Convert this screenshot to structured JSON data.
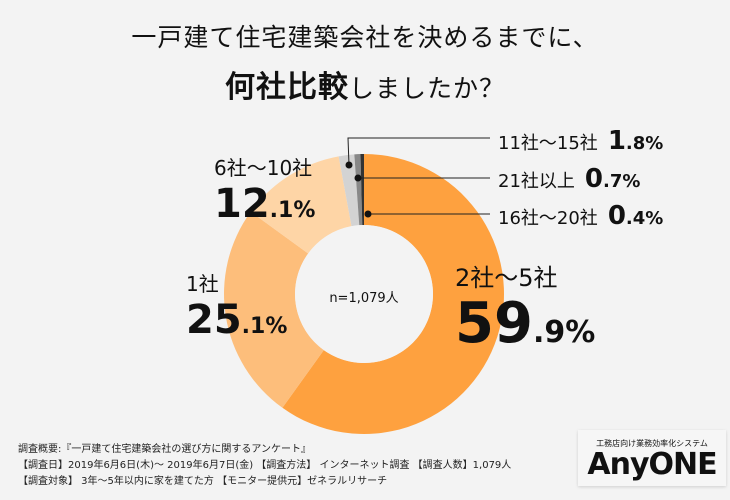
{
  "title_line1": "一戸建て住宅建築会社を決めるまでに、",
  "title_line2_bold": "何社比較",
  "title_line2_rest": "しましたか？",
  "chart_data": {
    "type": "pie",
    "donut": true,
    "center_label": "n=1,079人",
    "categories": [
      "2社〜5社",
      "1社",
      "6社〜10社",
      "11社〜15社",
      "21社以上",
      "16社〜20社"
    ],
    "values": [
      59.9,
      25.1,
      12.1,
      1.8,
      0.7,
      0.4
    ],
    "value_labels": [
      {
        "int": "59",
        "dec": ".9%"
      },
      {
        "int": "25",
        "dec": ".1%"
      },
      {
        "int": "12",
        "dec": ".1%"
      },
      {
        "int": "1",
        "dec": ".8%"
      },
      {
        "int": "0",
        "dec": ".7%"
      },
      {
        "int": "0",
        "dec": ".4%"
      }
    ],
    "colors": [
      "#fea13f",
      "#fdbe7b",
      "#fed5a6",
      "#d3d3d3",
      "#888888",
      "#333333"
    ],
    "start": "top",
    "direction": "clockwise"
  },
  "notes": [
    "調査概要:『一戸建て住宅建築会社の選び方に関するアンケート』",
    "【調査日】2019年6月6日(木)〜 2019年6月7日(金) 【調査方法】 インターネット調査 【調査人数】1,079人",
    "【調査対象】 3年〜5年以内に家を建てた方 【モニター提供元】ゼネラルリサーチ"
  ],
  "logo": {
    "subtitle": "工務店向け業務効率化システム",
    "name": "AnyONE"
  }
}
